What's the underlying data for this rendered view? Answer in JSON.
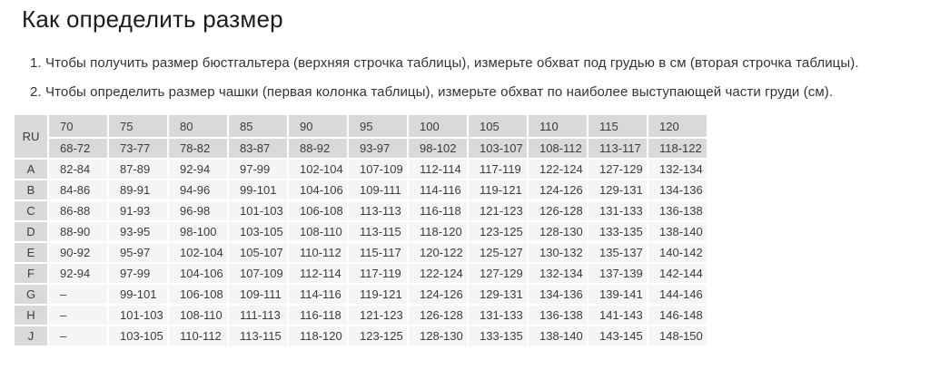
{
  "page": {
    "title": "Как определить размер"
  },
  "instructions": [
    "1. Чтобы получить размер бюстгальтера (верхняя строчка таблицы), измерьте обхват под грудью в см (вторая строчка таблицы).",
    "2. Чтобы определить размер чашки (первая колонка таблицы), измерьте обхват по наиболее выступающей части груди (см)."
  ],
  "size_table": {
    "corner_label": "RU",
    "band_sizes": [
      "70",
      "75",
      "80",
      "85",
      "90",
      "95",
      "100",
      "105",
      "110",
      "115",
      "120"
    ],
    "underbust_ranges": [
      "68-72",
      "73-77",
      "78-82",
      "83-87",
      "88-92",
      "93-97",
      "98-102",
      "103-107",
      "108-112",
      "113-117",
      "118-122"
    ],
    "cup_rows": [
      {
        "cup": "A",
        "values": [
          "82-84",
          "87-89",
          "92-94",
          "97-99",
          "102-104",
          "107-109",
          "112-114",
          "117-119",
          "122-124",
          "127-129",
          "132-134"
        ]
      },
      {
        "cup": "B",
        "values": [
          "84-86",
          "89-91",
          "94-96",
          "99-101",
          "104-106",
          "109-111",
          "114-116",
          "119-121",
          "124-126",
          "129-131",
          "134-136"
        ]
      },
      {
        "cup": "C",
        "values": [
          "86-88",
          "91-93",
          "96-98",
          "101-103",
          "106-108",
          "113-113",
          "116-118",
          "121-123",
          "126-128",
          "131-133",
          "136-138"
        ]
      },
      {
        "cup": "D",
        "values": [
          "88-90",
          "93-95",
          "98-100",
          "103-105",
          "108-110",
          "113-115",
          "118-120",
          "123-125",
          "128-130",
          "133-135",
          "138-140"
        ]
      },
      {
        "cup": "E",
        "values": [
          "90-92",
          "95-97",
          "102-104",
          "105-107",
          "110-112",
          "115-117",
          "120-122",
          "125-127",
          "130-132",
          "135-137",
          "140-142"
        ]
      },
      {
        "cup": "F",
        "values": [
          "92-94",
          "97-99",
          "104-106",
          "107-109",
          "112-114",
          "117-119",
          "122-124",
          "127-129",
          "132-134",
          "137-139",
          "142-144"
        ]
      },
      {
        "cup": "G",
        "values": [
          "–",
          "99-101",
          "106-108",
          "109-111",
          "114-116",
          "119-121",
          "124-126",
          "129-131",
          "134-136",
          "139-141",
          "144-146"
        ]
      },
      {
        "cup": "H",
        "values": [
          "–",
          "101-103",
          "108-110",
          "111-113",
          "116-118",
          "121-123",
          "126-128",
          "131-133",
          "136-138",
          "141-143",
          "146-148"
        ]
      },
      {
        "cup": "J",
        "values": [
          "–",
          "103-105",
          "110-112",
          "113-115",
          "118-120",
          "123-125",
          "128-130",
          "133-135",
          "138-140",
          "143-145",
          "148-150"
        ]
      }
    ],
    "colors": {
      "header_bg": "#d9d9d9",
      "cell_bg": "#f5f5f5",
      "text": "#3b3b3b",
      "grid": "#ffffff"
    }
  }
}
